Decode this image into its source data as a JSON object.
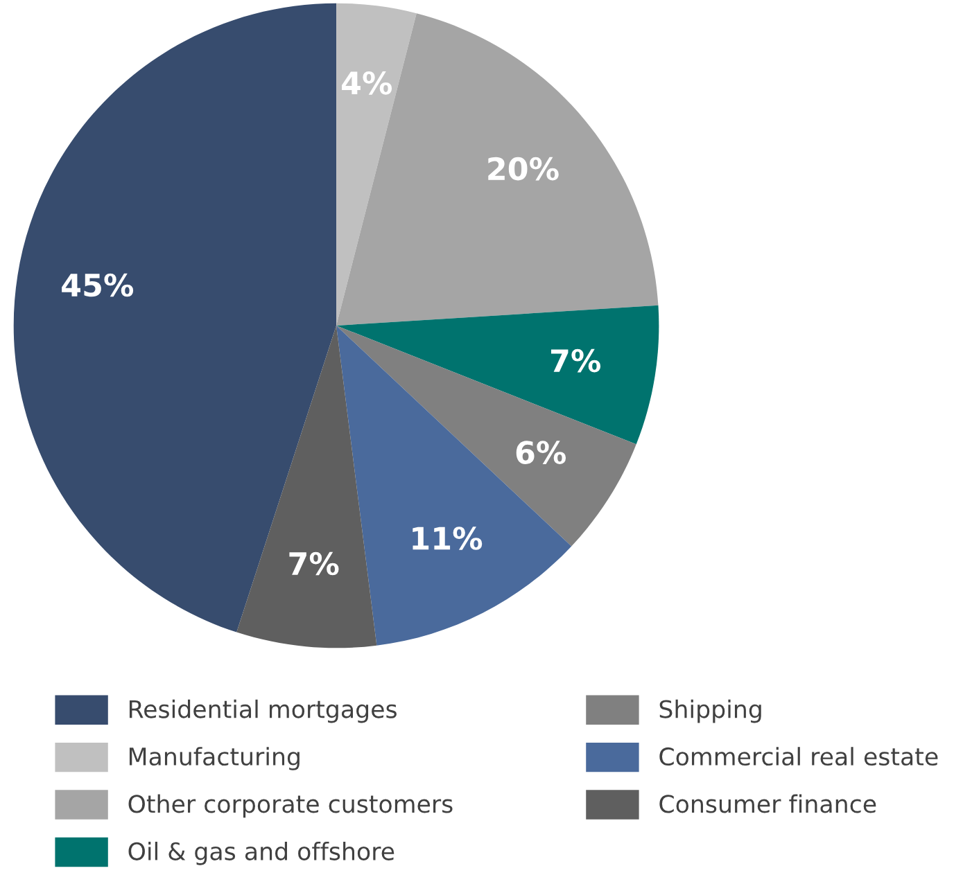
{
  "chart_data": {
    "type": "pie",
    "categories": [
      "Residential mortgages",
      "Manufacturing",
      "Other corporate customers",
      "Oil & gas and offshore",
      "Shipping",
      "Commercial real estate",
      "Consumer finance"
    ],
    "values": [
      45,
      4,
      20,
      7,
      6,
      11,
      7
    ],
    "value_labels": [
      "45%",
      "4%",
      "20%",
      "7%",
      "6%",
      "11%",
      "7%"
    ],
    "colors": [
      "#374c6e",
      "#c0c0c0",
      "#a5a5a5",
      "#00736e",
      "#808080",
      "#4a6a9c",
      "#5f5f5f"
    ],
    "legend": "bottom"
  }
}
